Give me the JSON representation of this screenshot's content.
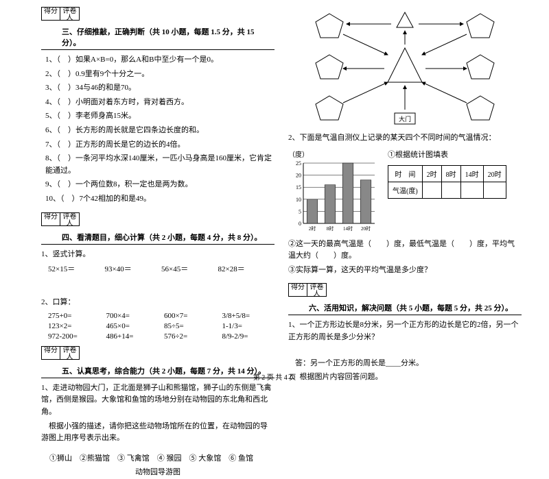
{
  "headers": {
    "score": "得分",
    "reviewer": "评卷人"
  },
  "section3": {
    "title": "三、仔细推敲，正确判断（共 10 小题，每题 1.5 分，共 15 分）。",
    "items": [
      "1、（　）如果A×B=0，那么A和B中至少有一个是0。",
      "2、（　）0.9里有9个十分之一。",
      "3、（　）34与46的和是70。",
      "4、（　）小明面对着东方时，背对着西方。",
      "5、（　）李老师身高15米。",
      "6、（　）长方形的周长就是它四条边长度的和。",
      "7、（　）正方形的周长是它的边长的4倍。",
      "8、（　）一条河平均水深140厘米，一匹小马身高是160厘米，它肯定能通过。",
      "9、（　）一个两位数8，积一定也是两为数。",
      "10、（　）7个42相加的和是49。"
    ]
  },
  "section4": {
    "title": "四、看清题目，细心计算（共 2 小题，每题 4 分，共 8 分）。",
    "q1_label": "1、竖式计算。",
    "q1_items": [
      "52×15＝",
      "93×40＝",
      "56×45＝",
      "82×28＝"
    ],
    "q2_label": "2、口算：",
    "q2_items": [
      "275+0=",
      "700×4=",
      "600×7=",
      "3/8+5/8=",
      "123×2=",
      "465×0=",
      "85÷5=",
      "1-1/3=",
      "972-200=",
      "486+14=",
      "576÷2=",
      "8/9-2/9="
    ]
  },
  "section5": {
    "title": "五、认真思考，综合能力（共 2 小题，每题 7 分，共 14 分）。",
    "q1_p1": "1、走进动物园大门，正北面是狮子山和熊猫馆，狮子山的东侧是飞禽馆，西侧是猴园。大象馆和鱼馆的场地分别在动物园的东北角和西北角。",
    "q1_p2": "根据小强的描述，请你把这些动物场馆所在的位置，在动物园的导游图上用序号表示出来。",
    "q1_options": "①狮山　②熊猫馆　③ 飞禽馆　④ 猴园　⑤ 大象馆　⑥ 鱼馆",
    "q1_caption": "动物园导游图"
  },
  "diagram": {
    "node_label": "大门",
    "colors": {
      "stroke": "#000000",
      "fill": "#ffffff"
    }
  },
  "section5_right": {
    "q2_intro": "2、下面是气温自测仪上记录的某天四个不同时间的气温情况：",
    "chart_ylabel": "（度）",
    "chart_title": "①根据统计图填表",
    "chart": {
      "y_ticks": [
        25,
        20,
        15,
        10,
        5,
        0
      ],
      "x_labels": [
        "2时",
        "8时",
        "14时",
        "20时"
      ],
      "values": [
        10,
        16,
        25,
        18
      ],
      "bar_color": "#888888",
      "grid_color": "#000000",
      "ylim": [
        0,
        25
      ]
    },
    "table": {
      "r1": [
        "时　间",
        "2时",
        "8时",
        "14时",
        "20时"
      ],
      "r2": [
        "气温(度)",
        "",
        "",
        "",
        ""
      ]
    },
    "q2_line2": "②这一天的最高气温是（　　）度，最低气温是（　　）度，平均气温大约（　　）度。",
    "q2_line3": "③实际算一算，这天的平均气温是多少度？"
  },
  "section6": {
    "title": "六、活用知识，解决问题（共 5 小题，每题 5 分，共 25 分）。",
    "q1": "1、一个正方形边长是8分米，另一个正方形的边长是它的2倍，另一个正方形的周长是多少分米？",
    "q1_ans": "答：另一个正方形的周长是____分米。",
    "q2": "2、根据图片内容回答问题。"
  },
  "footer": "第 2 页 共 4 页"
}
